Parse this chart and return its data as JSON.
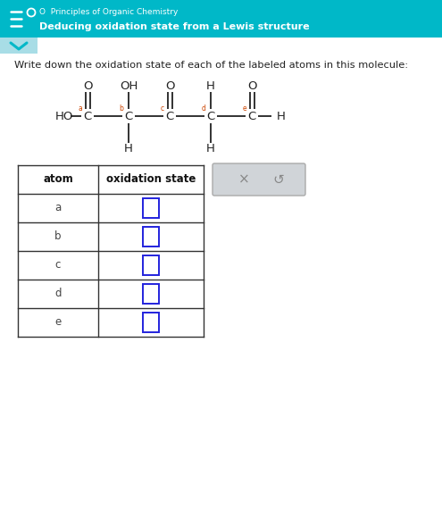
{
  "header_bg": "#00b8c8",
  "header_text1": "O  Principles of Organic Chemistry",
  "header_text2": "Deducing oxidation state from a Lewis structure",
  "header_text1_color": "#ffffff",
  "header_text2_color": "#ffffff",
  "chevron_bg": "#a8dde6",
  "instruction": "Write down the oxidation state of each of the labeled atoms in this molecule:",
  "instruction_color": "#222222",
  "table_atoms": [
    "a",
    "b",
    "c",
    "d",
    "e"
  ],
  "table_header_atom": "atom",
  "table_header_ox": "oxidation state",
  "input_box_color": "#2222dd",
  "bg_color": "#ffffff",
  "molecule_color": "#222222",
  "label_color": "#cc4400",
  "x_button_bg": "#d0d4d8",
  "x_button_text": "×",
  "undo_button_text": "↺",
  "fig_w": 4.95,
  "fig_h": 5.8,
  "dpi": 100
}
